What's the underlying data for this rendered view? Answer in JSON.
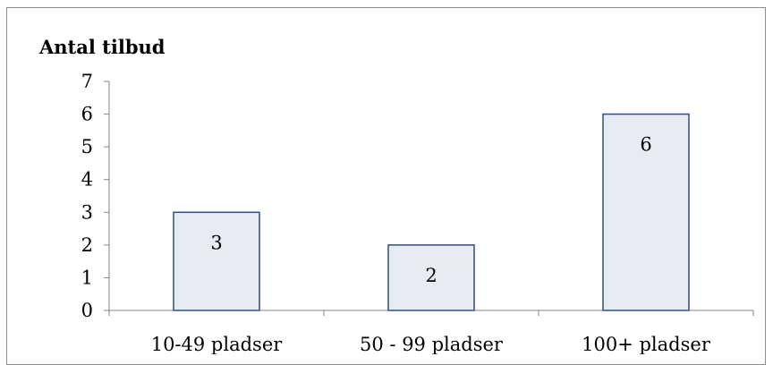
{
  "chart_data": {
    "type": "bar",
    "title": "Antal tilbud",
    "xlabel": "",
    "ylabel": "",
    "categories": [
      "10-49 pladser",
      "50 - 99 pladser",
      "100+ pladser"
    ],
    "values": [
      3,
      2,
      6
    ],
    "data_labels": [
      "3",
      "2",
      "6"
    ],
    "ylim": [
      0,
      7
    ],
    "yticks": [
      "0",
      "1",
      "2",
      "3",
      "4",
      "5",
      "6",
      "7"
    ],
    "grid": false,
    "legend": "none",
    "colors": {
      "bar_fill": "#e8ebf3",
      "bar_stroke": "#2f4f8a",
      "axis": "#868686",
      "frame": "#8c8c8c"
    }
  }
}
